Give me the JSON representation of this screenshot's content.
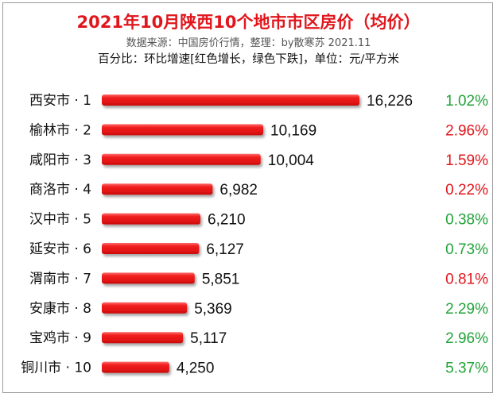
{
  "title": "2021年10月陕西10个地市市区房价（均价）",
  "subtitle": "数据来源：中国房价行情，整理：by散寒苏 2021.11",
  "note": "百分比：环比增速[红色增长，绿色下跌]，单位：元/平方米",
  "colors": {
    "bar": "#ee1c1c",
    "up": "#e0161c",
    "down": "#22a33a",
    "title": "#e0161c"
  },
  "chart_data": {
    "type": "bar",
    "orientation": "horizontal",
    "categories": [
      "西安市 · 1",
      "榆林市 · 2",
      "咸阳市 · 3",
      "商洛市 · 4",
      "汉中市 · 5",
      "延安市 · 6",
      "渭南市 · 7",
      "安康市 · 8",
      "宝鸡市 · 9",
      "铜川市 · 10"
    ],
    "values": [
      16226,
      10169,
      10004,
      6982,
      6210,
      6127,
      5851,
      5369,
      5117,
      4250
    ],
    "value_labels": [
      "16,226",
      "10,169",
      "10,004",
      "6,982",
      "6,210",
      "6,127",
      "5,851",
      "5,369",
      "5,117",
      "4,250"
    ],
    "change_labels": [
      "1.02%",
      "2.96%",
      "1.59%",
      "0.22%",
      "0.38%",
      "0.73%",
      "0.81%",
      "2.29%",
      "2.96%",
      "5.37%"
    ],
    "change_direction": [
      "down",
      "up",
      "up",
      "up",
      "down",
      "down",
      "up",
      "down",
      "down",
      "down"
    ],
    "xlim": [
      0,
      16226
    ],
    "grid": false,
    "legend": "none"
  }
}
